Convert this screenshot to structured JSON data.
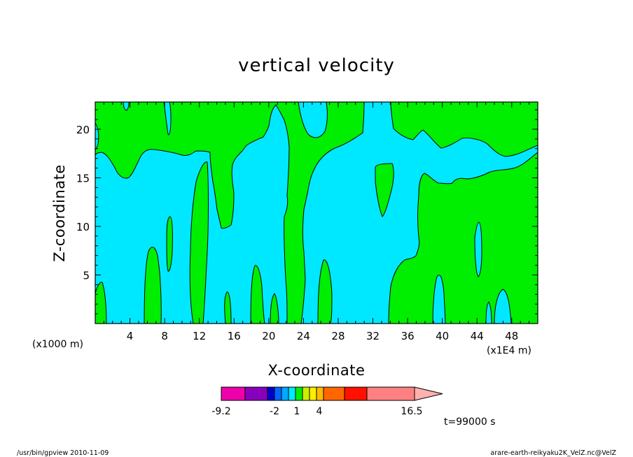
{
  "chart_data": {
    "type": "contour",
    "title": "vertical velocity",
    "xlabel": "X-coordinate",
    "ylabel": "Z-coordinate",
    "x_unit_left": "(x1000 m)",
    "x_unit_right": "(x1E4 m)",
    "xlim": [
      0,
      51
    ],
    "ylim": [
      0,
      22.8
    ],
    "x_ticks": [
      4,
      8,
      12,
      16,
      20,
      24,
      28,
      32,
      36,
      40,
      44,
      48
    ],
    "y_ticks": [
      5,
      10,
      15,
      20
    ],
    "colors": {
      "negative": "#00e8ff",
      "positive": "#00ee00",
      "contour_line": "#000000"
    },
    "colorbar": {
      "segments": [
        "#ee00aa",
        "#8800bb",
        "#0000cc",
        "#0066ff",
        "#00aaff",
        "#00e8ff",
        "#00ee00",
        "#ccee00",
        "#ffee00",
        "#ffbb00",
        "#ff6600",
        "#ff1100",
        "#ff8080",
        "#ffb0b0"
      ],
      "labels": [
        "-9.2",
        "-2",
        "1",
        "4",
        "16.5"
      ]
    },
    "time_label": "t=99000 s",
    "footer_left": "/usr/bin/gpview  2010-11-09",
    "footer_right": "arare-earth-reikyaku2K_VelZ.nc@VelZ"
  }
}
